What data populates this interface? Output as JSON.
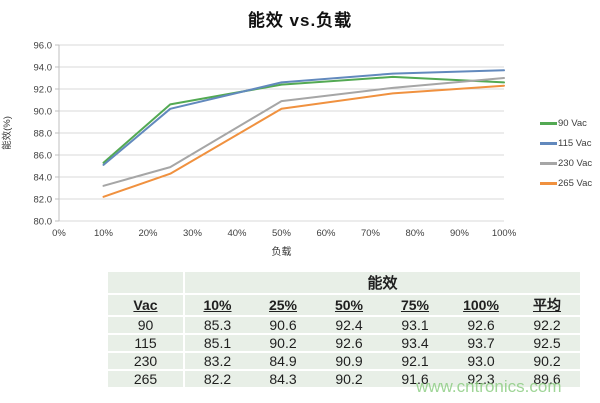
{
  "chart": {
    "title": "能效 vs.负载"
  },
  "chart_data": {
    "type": "line",
    "title": "能效 vs.负载",
    "xlabel": "负载",
    "ylabel": "能效(%)",
    "x": [
      10,
      25,
      50,
      75,
      100
    ],
    "xlim": [
      0,
      100
    ],
    "x_tick_step": 10,
    "x_tick_suffix": "%",
    "ylim": [
      80,
      96
    ],
    "y_tick_step": 2,
    "y_tick_decimals": 1,
    "grid": true,
    "legend_position": "right",
    "colors": {
      "gridline": "#d9d9d9",
      "axis": "#bfbfbf",
      "tick_text": "#3f3f3f"
    },
    "series": [
      {
        "name": "90 Vac",
        "color": "#53a953",
        "values": [
          85.3,
          90.6,
          92.4,
          93.1,
          92.6
        ]
      },
      {
        "name": "115 Vac",
        "color": "#6289bd",
        "values": [
          85.1,
          90.2,
          92.6,
          93.4,
          93.7
        ]
      },
      {
        "name": "230 Vac",
        "color": "#a6a6a6",
        "values": [
          83.2,
          84.9,
          90.9,
          92.1,
          93.0
        ]
      },
      {
        "name": "265 Vac",
        "color": "#f0913f",
        "values": [
          82.2,
          84.3,
          90.2,
          91.6,
          92.3
        ]
      }
    ]
  },
  "table": {
    "title": "能效",
    "columns": [
      "Vac",
      "10%",
      "25%",
      "50%",
      "75%",
      "100%",
      "平均"
    ],
    "rows": [
      [
        "90",
        "85.3",
        "90.6",
        "92.4",
        "93.1",
        "92.6",
        "92.2"
      ],
      [
        "115",
        "85.1",
        "90.2",
        "92.6",
        "93.4",
        "93.7",
        "92.5"
      ],
      [
        "230",
        "83.2",
        "84.9",
        "90.9",
        "92.1",
        "93.0",
        "90.2"
      ],
      [
        "265",
        "82.2",
        "84.3",
        "90.2",
        "91.6",
        "92.3",
        "89.6"
      ]
    ]
  },
  "watermark": {
    "text": "www.cntronics.com",
    "color": "#8fce85"
  }
}
